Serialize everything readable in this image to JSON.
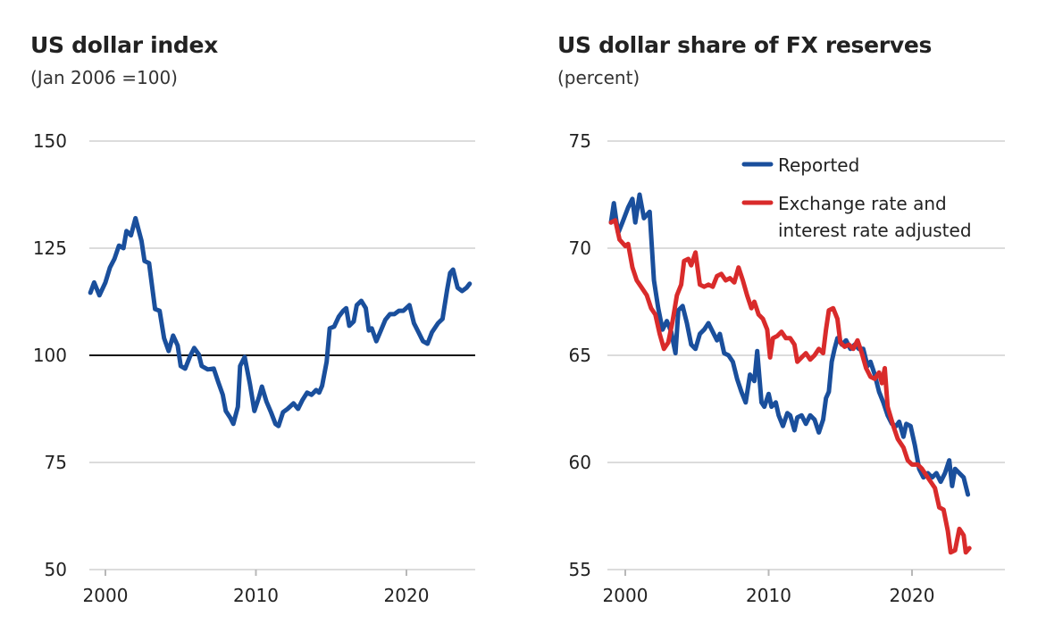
{
  "colors": {
    "reported": "#1a4f9c",
    "adjusted": "#d92b2b",
    "grid": "#d0d0d0",
    "reference": "#111111",
    "text": "#222222"
  },
  "chart_data": [
    {
      "type": "line",
      "title": "US dollar index",
      "subtitle": "(Jan 2006 =100)",
      "xlabel": "",
      "ylabel": "",
      "xlim": [
        1999,
        2024.5
      ],
      "ylim": [
        50,
        150
      ],
      "yticks": [
        50,
        75,
        100,
        125,
        150
      ],
      "ytick_labels": [
        "50",
        "75",
        "100",
        "125",
        "150"
      ],
      "xticks": [
        2000,
        2010,
        2020
      ],
      "xtick_labels": [
        "2000",
        "2010",
        "2020"
      ],
      "grid": true,
      "reference_line": 100,
      "legend": null,
      "series": [
        {
          "name": "US dollar index",
          "color_key": "reported",
          "x": [
            1999.0,
            1999.25,
            1999.6,
            2000.0,
            2000.3,
            2000.6,
            2000.9,
            2001.2,
            2001.4,
            2001.7,
            2002.0,
            2002.4,
            2002.6,
            2002.9,
            2003.3,
            2003.6,
            2003.9,
            2004.2,
            2004.5,
            2004.8,
            2005.0,
            2005.3,
            2005.6,
            2005.9,
            2006.2,
            2006.4,
            2006.8,
            2007.2,
            2007.5,
            2007.8,
            2008.0,
            2008.3,
            2008.5,
            2008.8,
            2008.95,
            2009.25,
            2009.6,
            2009.9,
            2010.2,
            2010.4,
            2010.7,
            2011.0,
            2011.3,
            2011.5,
            2011.8,
            2012.1,
            2012.5,
            2012.8,
            2013.1,
            2013.4,
            2013.7,
            2014.0,
            2014.2,
            2014.4,
            2014.7,
            2014.9,
            2015.2,
            2015.5,
            2015.8,
            2016.0,
            2016.2,
            2016.5,
            2016.7,
            2017.0,
            2017.3,
            2017.5,
            2017.7,
            2018.0,
            2018.3,
            2018.6,
            2018.9,
            2019.2,
            2019.5,
            2019.8,
            2020.2,
            2020.5,
            2020.8,
            2021.1,
            2021.4,
            2021.7,
            2022.1,
            2022.4,
            2022.7,
            2022.9,
            2023.1,
            2023.4,
            2023.7,
            2024.0,
            2024.2
          ],
          "values": [
            114.6,
            117,
            114,
            117,
            120.5,
            122.5,
            125.6,
            125,
            129,
            128,
            132,
            126.7,
            122,
            121.5,
            110.8,
            110.4,
            104,
            101,
            104.6,
            102.3,
            97.5,
            96.9,
            99.6,
            101.7,
            100.2,
            97.5,
            96.7,
            96.9,
            93.7,
            90.8,
            87,
            85.4,
            84,
            88,
            97.5,
            99.6,
            93.3,
            87,
            90.2,
            92.7,
            89.2,
            86.7,
            84,
            83.5,
            86.7,
            87.5,
            88.8,
            87.5,
            89.6,
            91.3,
            90.8,
            91.9,
            91.3,
            92.9,
            98.5,
            106.3,
            106.7,
            109,
            110.4,
            111,
            106.9,
            107.9,
            111.7,
            112.7,
            111,
            105.8,
            106.3,
            103.3,
            105.8,
            108.3,
            109.6,
            109.6,
            110.4,
            110.4,
            111.7,
            107.5,
            105.4,
            103.3,
            102.7,
            105.4,
            107.5,
            108.5,
            115.2,
            119.2,
            120,
            115.8,
            115,
            115.8,
            116.7
          ]
        }
      ]
    },
    {
      "type": "line",
      "title": "US dollar share of FX reserves",
      "subtitle": "(percent)",
      "xlabel": "",
      "ylabel": "",
      "xlim": [
        1999,
        2024.5
      ],
      "ylim": [
        55,
        75
      ],
      "yticks": [
        55,
        60,
        65,
        70,
        75
      ],
      "ytick_labels": [
        "55",
        "60",
        "65",
        "70",
        "75"
      ],
      "xticks": [
        2000,
        2010,
        2020
      ],
      "xtick_labels": [
        "2000",
        "2010",
        "2020"
      ],
      "grid": true,
      "legend": {
        "placement": "top-right",
        "entries": [
          {
            "label": "Reported",
            "color_key": "reported"
          },
          {
            "label_lines": [
              "Exchange rate and",
              "interest rate adjusted"
            ],
            "color_key": "adjusted"
          }
        ]
      },
      "series": [
        {
          "name": "Reported",
          "color_key": "reported",
          "x": [
            1999.0,
            1999.2,
            1999.5,
            1999.8,
            2000.2,
            2000.5,
            2000.7,
            2001.0,
            2001.3,
            2001.7,
            2002.0,
            2002.3,
            2002.6,
            2002.9,
            2003.2,
            2003.5,
            2003.7,
            2004.0,
            2004.3,
            2004.6,
            2004.9,
            2005.2,
            2005.5,
            2005.8,
            2006.1,
            2006.4,
            2006.6,
            2006.9,
            2007.2,
            2007.5,
            2007.8,
            2008.1,
            2008.4,
            2008.7,
            2009.0,
            2009.2,
            2009.5,
            2009.7,
            2010.0,
            2010.2,
            2010.5,
            2010.7,
            2011.0,
            2011.3,
            2011.5,
            2011.8,
            2012.0,
            2012.3,
            2012.6,
            2012.9,
            2013.2,
            2013.5,
            2013.8,
            2014.0,
            2014.2,
            2014.4,
            2014.6,
            2014.8,
            2015.1,
            2015.4,
            2015.7,
            2016.0,
            2016.3,
            2016.6,
            2016.9,
            2017.1,
            2017.4,
            2017.7,
            2018.0,
            2018.3,
            2018.6,
            2018.9,
            2019.1,
            2019.4,
            2019.6,
            2019.9,
            2020.2,
            2020.5,
            2020.8,
            2021.1,
            2021.4,
            2021.7,
            2022.0,
            2022.3,
            2022.6,
            2022.8,
            2023.0,
            2023.3,
            2023.6,
            2023.9
          ],
          "values": [
            71.2,
            72.1,
            70.7,
            71.2,
            71.9,
            72.3,
            71.2,
            72.5,
            71.4,
            71.7,
            68.5,
            67.2,
            66.2,
            66.6,
            66.1,
            65.1,
            67.1,
            67.3,
            66.5,
            65.5,
            65.3,
            66.0,
            66.2,
            66.5,
            66.1,
            65.7,
            66.0,
            65.1,
            65.0,
            64.7,
            63.9,
            63.3,
            62.8,
            64.1,
            63.8,
            65.2,
            62.8,
            62.6,
            63.2,
            62.6,
            62.8,
            62.2,
            61.7,
            62.3,
            62.2,
            61.5,
            62.1,
            62.2,
            61.8,
            62.2,
            62.0,
            61.4,
            62.0,
            63.0,
            63.3,
            64.7,
            65.3,
            65.8,
            65.5,
            65.7,
            65.3,
            65.5,
            65.3,
            65.3,
            64.5,
            64.7,
            64.1,
            63.3,
            62.8,
            62.2,
            61.8,
            61.7,
            61.9,
            61.2,
            61.8,
            61.7,
            60.8,
            59.7,
            59.3,
            59.5,
            59.3,
            59.5,
            59.1,
            59.5,
            60.1,
            58.9,
            59.7,
            59.5,
            59.3,
            58.5
          ]
        },
        {
          "name": "Exchange rate and interest rate adjusted",
          "color_key": "adjusted",
          "x": [
            1999.0,
            1999.3,
            1999.6,
            2000.0,
            2000.2,
            2000.5,
            2000.8,
            2001.1,
            2001.5,
            2001.8,
            2002.1,
            2002.4,
            2002.7,
            2003.0,
            2003.3,
            2003.6,
            2003.9,
            2004.1,
            2004.4,
            2004.6,
            2004.9,
            2005.2,
            2005.5,
            2005.8,
            2006.1,
            2006.4,
            2006.7,
            2007.0,
            2007.3,
            2007.6,
            2007.9,
            2008.2,
            2008.5,
            2008.8,
            2009.0,
            2009.3,
            2009.6,
            2009.9,
            2010.1,
            2010.3,
            2010.6,
            2010.9,
            2011.2,
            2011.5,
            2011.8,
            2012.0,
            2012.3,
            2012.6,
            2012.9,
            2013.2,
            2013.5,
            2013.8,
            2014.0,
            2014.2,
            2014.5,
            2014.8,
            2015.0,
            2015.3,
            2015.6,
            2015.9,
            2016.2,
            2016.5,
            2016.8,
            2017.1,
            2017.4,
            2017.7,
            2017.9,
            2018.1,
            2018.3,
            2018.7,
            2019.0,
            2019.4,
            2019.7,
            2020.0,
            2020.4,
            2020.7,
            2021.0,
            2021.3,
            2021.6,
            2021.9,
            2022.2,
            2022.5,
            2022.7,
            2023.0,
            2023.3,
            2023.6,
            2023.75,
            2024.0
          ],
          "values": [
            71.2,
            71.3,
            70.4,
            70.1,
            70.2,
            69.1,
            68.5,
            68.2,
            67.8,
            67.2,
            66.9,
            66.0,
            65.3,
            65.6,
            66.6,
            67.8,
            68.3,
            69.4,
            69.5,
            69.2,
            69.8,
            68.3,
            68.2,
            68.3,
            68.2,
            68.7,
            68.8,
            68.5,
            68.6,
            68.4,
            69.1,
            68.5,
            67.8,
            67.2,
            67.5,
            66.9,
            66.7,
            66.2,
            64.9,
            65.8,
            65.9,
            66.1,
            65.8,
            65.8,
            65.5,
            64.7,
            64.9,
            65.1,
            64.8,
            65.0,
            65.3,
            65.1,
            66.2,
            67.1,
            67.2,
            66.7,
            65.6,
            65.4,
            65.5,
            65.3,
            65.7,
            65.1,
            64.4,
            64.0,
            63.9,
            64.2,
            63.7,
            64.4,
            62.6,
            61.7,
            61.1,
            60.7,
            60.1,
            59.9,
            59.9,
            59.7,
            59.4,
            59.1,
            58.8,
            57.9,
            57.8,
            56.8,
            55.8,
            55.9,
            56.9,
            56.6,
            55.8,
            56.0
          ]
        }
      ]
    }
  ]
}
